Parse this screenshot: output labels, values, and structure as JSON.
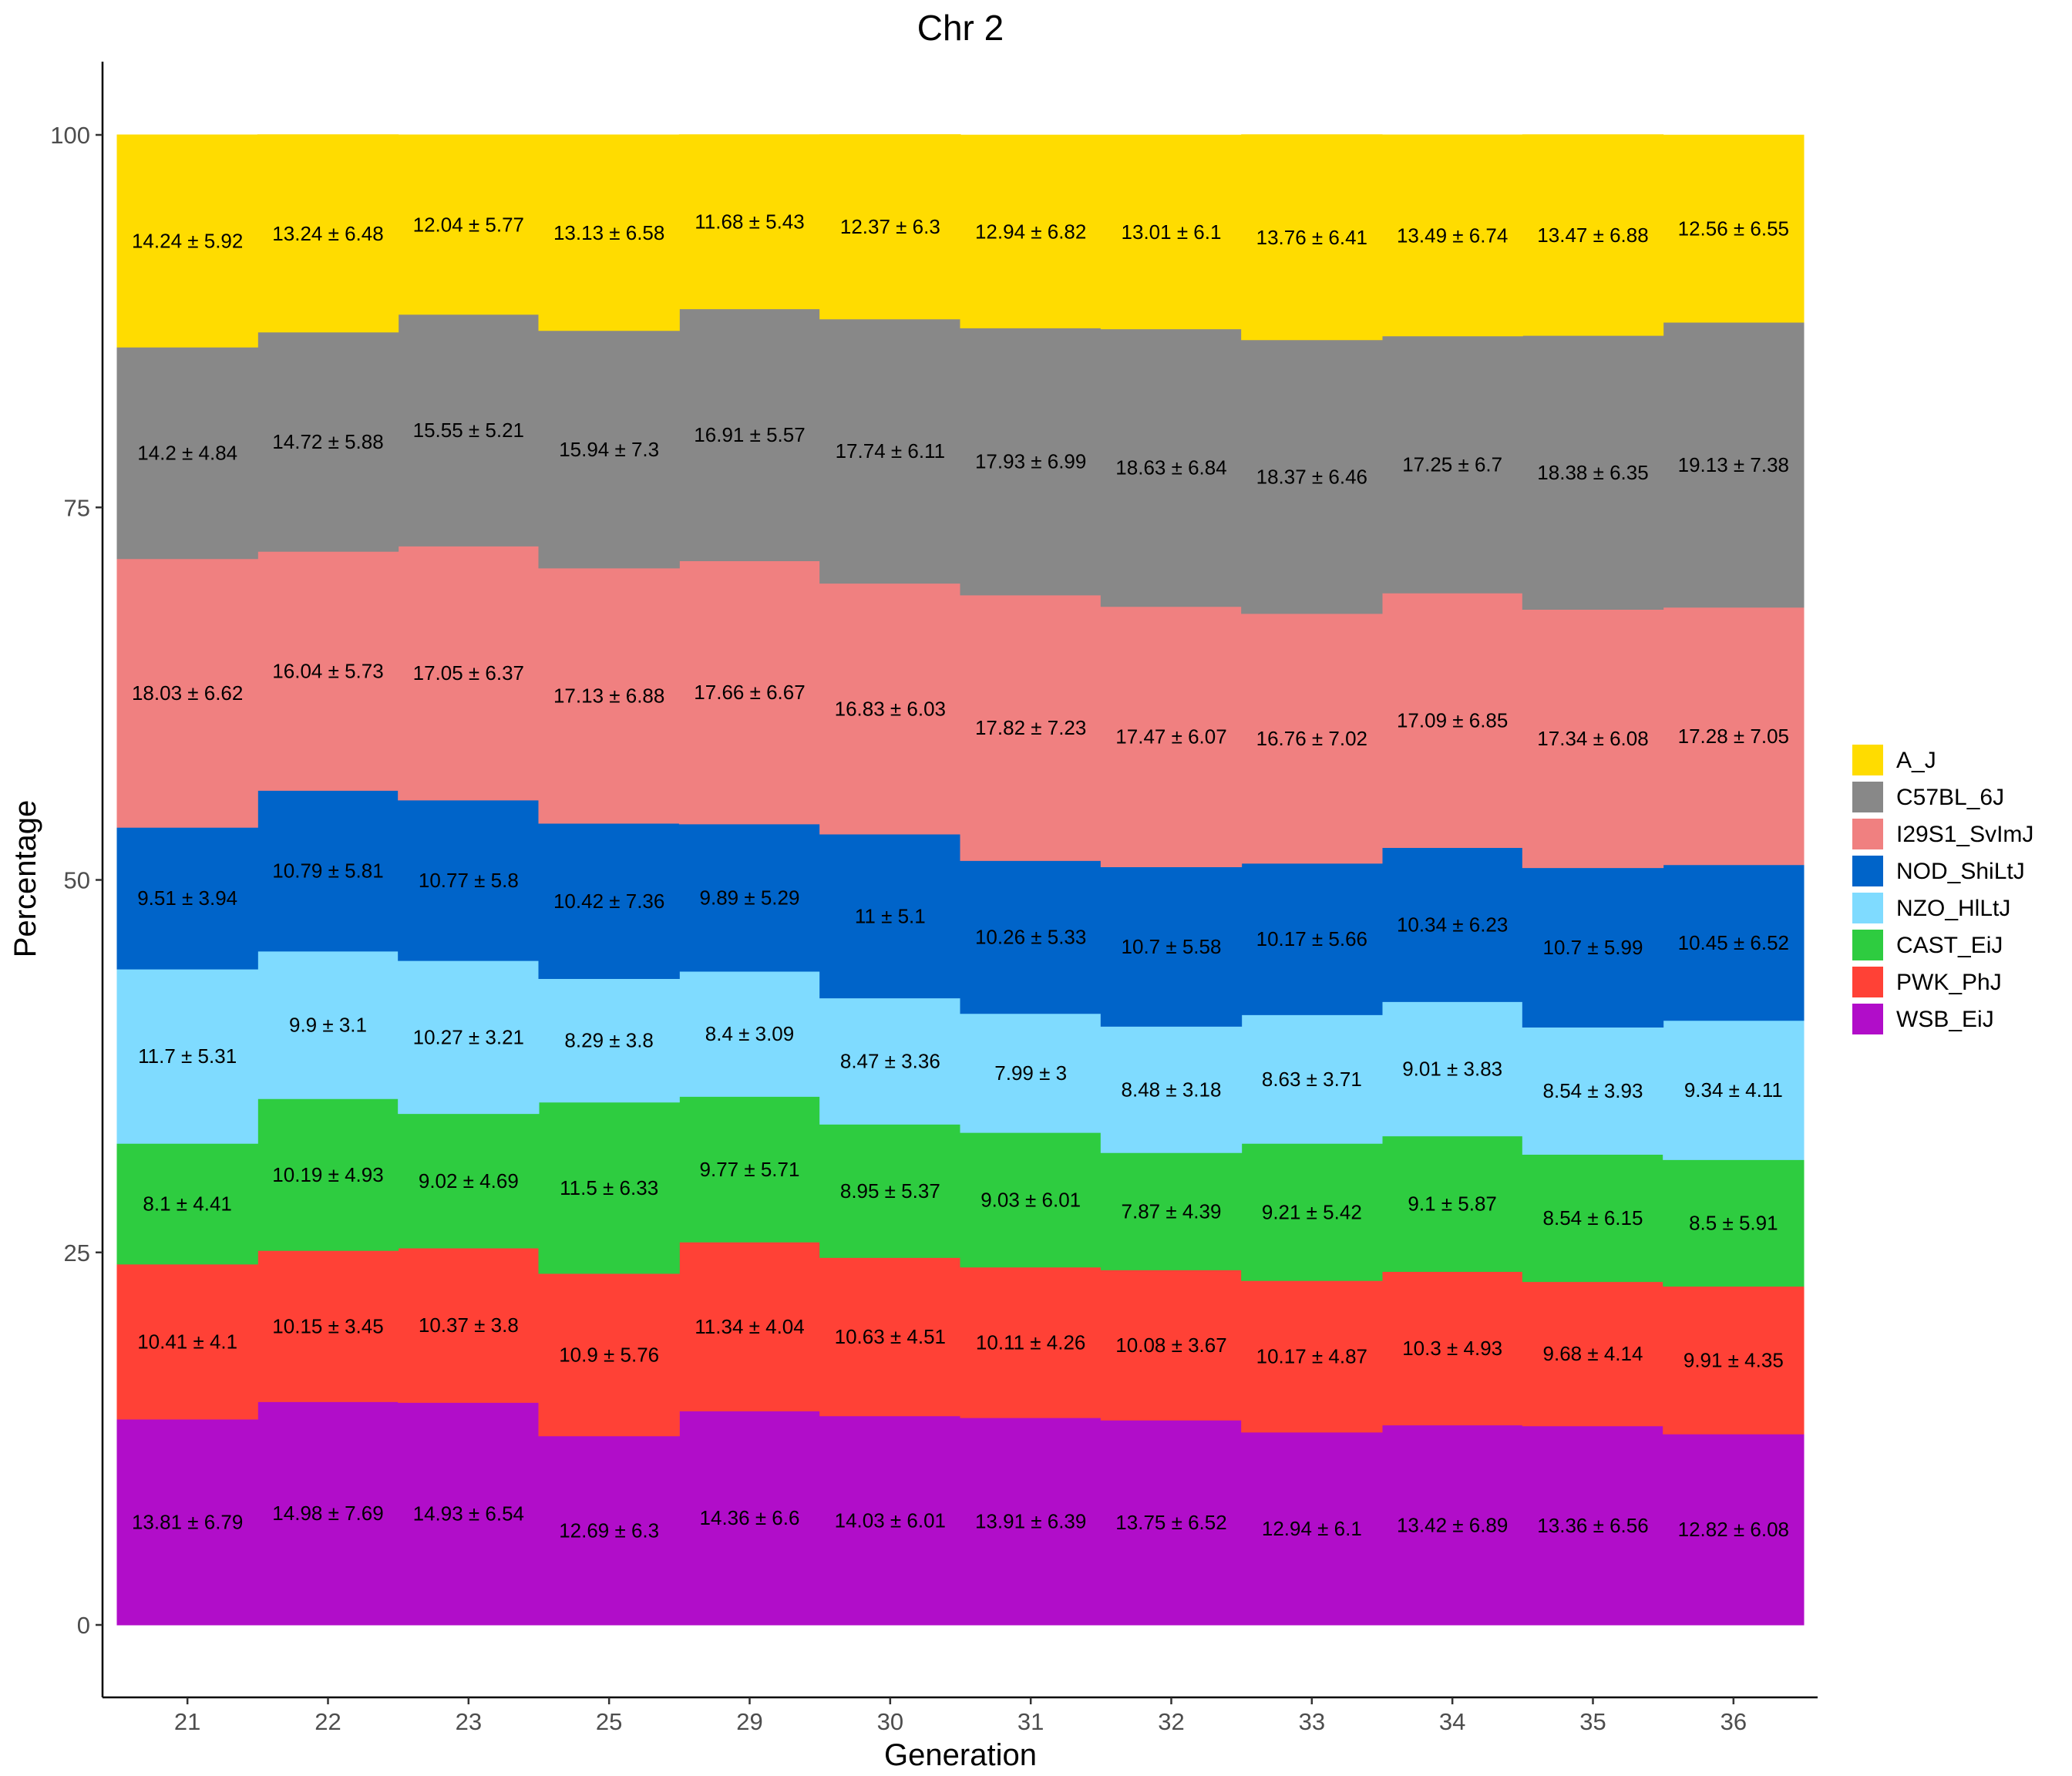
{
  "chart_data": {
    "type": "area",
    "stacked": true,
    "title": "Chr 2",
    "xlabel": "Generation",
    "ylabel": "Percentage",
    "ylim": [
      -5,
      105
    ],
    "yticks": [
      0,
      25,
      50,
      75,
      100
    ],
    "categories": [
      "21",
      "22",
      "23",
      "25",
      "29",
      "30",
      "31",
      "32",
      "33",
      "34",
      "35",
      "36"
    ],
    "grid": false,
    "legend_position": "right",
    "series": [
      {
        "name": "WSB_EiJ",
        "color": "#B10DC9",
        "values": [
          13.81,
          14.98,
          14.93,
          12.69,
          14.36,
          14.03,
          13.91,
          13.75,
          12.94,
          13.42,
          13.36,
          12.82
        ],
        "labels": [
          "13.81 ± 6.79",
          "14.98 ± 7.69",
          "14.93 ± 6.54",
          "12.69 ± 6.3",
          "14.36 ± 6.6",
          "14.03 ± 6.01",
          "13.91 ± 6.39",
          "13.75 ± 6.52",
          "12.94 ± 6.1",
          "13.42 ± 6.89",
          "13.36 ± 6.56",
          "12.82 ± 6.08"
        ]
      },
      {
        "name": "PWK_PhJ",
        "color": "#FF4136",
        "values": [
          10.41,
          10.15,
          10.37,
          10.9,
          11.34,
          10.63,
          10.11,
          10.08,
          10.17,
          10.3,
          9.68,
          9.91
        ],
        "labels": [
          "10.41 ± 4.1",
          "10.15 ± 3.45",
          "10.37 ± 3.8",
          "10.9 ± 5.76",
          "11.34 ± 4.04",
          "10.63 ± 4.51",
          "10.11 ± 4.26",
          "10.08 ± 3.67",
          "10.17 ± 4.87",
          "10.3 ± 4.93",
          "9.68 ± 4.14",
          "9.91 ± 4.35"
        ]
      },
      {
        "name": "CAST_EiJ",
        "color": "#2ECC40",
        "values": [
          8.1,
          10.19,
          9.02,
          11.5,
          9.77,
          8.95,
          9.03,
          7.87,
          9.21,
          9.1,
          8.54,
          8.5
        ],
        "labels": [
          "8.1 ± 4.41",
          "10.19 ± 4.93",
          "9.02 ± 4.69",
          "11.5 ± 6.33",
          "9.77 ± 5.71",
          "8.95 ± 5.37",
          "9.03 ± 6.01",
          "7.87 ± 4.39",
          "9.21 ± 5.42",
          "9.1 ± 5.87",
          "8.54 ± 6.15",
          "8.5 ± 5.91"
        ]
      },
      {
        "name": "NZO_HlLtJ",
        "color": "#7FDBFF",
        "values": [
          11.7,
          9.9,
          10.27,
          8.29,
          8.4,
          8.47,
          7.99,
          8.48,
          8.63,
          9.01,
          8.54,
          9.34
        ],
        "labels": [
          "11.7 ± 5.31",
          "9.9 ± 3.1",
          "10.27 ± 3.21",
          "8.29 ± 3.8",
          "8.4 ± 3.09",
          "8.47 ± 3.36",
          "7.99 ± 3",
          "8.48 ± 3.18",
          "8.63 ± 3.71",
          "9.01 ± 3.83",
          "8.54 ± 3.93",
          "9.34 ± 4.11"
        ]
      },
      {
        "name": "NOD_ShiLtJ",
        "color": "#0064C9",
        "values": [
          9.51,
          10.79,
          10.77,
          10.42,
          9.89,
          11,
          10.26,
          10.7,
          10.17,
          10.34,
          10.7,
          10.45
        ],
        "labels": [
          "9.51 ± 3.94",
          "10.79 ± 5.81",
          "10.77 ± 5.8",
          "10.42 ± 7.36",
          "9.89 ± 5.29",
          "11 ± 5.1",
          "10.26 ± 5.33",
          "10.7 ± 5.58",
          "10.17 ± 5.66",
          "10.34 ± 6.23",
          "10.7 ± 5.99",
          "10.45 ± 6.52"
        ]
      },
      {
        "name": "I29S1_SvImJ",
        "color": "#F08080",
        "values": [
          18.03,
          16.04,
          17.05,
          17.13,
          17.66,
          16.83,
          17.82,
          17.47,
          16.76,
          17.09,
          17.34,
          17.28
        ],
        "labels": [
          "18.03 ± 6.62",
          "16.04 ± 5.73",
          "17.05 ± 6.37",
          "17.13 ± 6.88",
          "17.66 ± 6.67",
          "16.83 ± 6.03",
          "17.82 ± 7.23",
          "17.47 ± 6.07",
          "16.76 ± 7.02",
          "17.09 ± 6.85",
          "17.34 ± 6.08",
          "17.28 ± 7.05"
        ]
      },
      {
        "name": "C57BL_6J",
        "color": "#888888",
        "values": [
          14.2,
          14.72,
          15.55,
          15.94,
          16.91,
          17.74,
          17.93,
          18.63,
          18.37,
          17.25,
          18.38,
          19.13
        ],
        "labels": [
          "14.2 ± 4.84",
          "14.72 ± 5.88",
          "15.55 ± 5.21",
          "15.94 ± 7.3",
          "16.91 ± 5.57",
          "17.74 ± 6.11",
          "17.93 ± 6.99",
          "18.63 ± 6.84",
          "18.37 ± 6.46",
          "17.25 ± 6.7",
          "18.38 ± 6.35",
          "19.13 ± 7.38"
        ]
      },
      {
        "name": "A_J",
        "color": "#FFDC00",
        "values": [
          14.24,
          13.24,
          12.04,
          13.13,
          11.68,
          12.37,
          12.94,
          13.01,
          13.76,
          13.49,
          13.47,
          12.56
        ],
        "labels": [
          "14.24 ± 5.92",
          "13.24 ± 6.48",
          "12.04 ± 5.77",
          "13.13 ± 6.58",
          "11.68 ± 5.43",
          "12.37 ± 6.3",
          "12.94 ± 6.82",
          "13.01 ± 6.1",
          "13.76 ± 6.41",
          "13.49 ± 6.74",
          "13.47 ± 6.88",
          "12.56 ± 6.55"
        ]
      }
    ],
    "legend_entries": [
      "A_J",
      "C57BL_6J",
      "I29S1_SvImJ",
      "NOD_ShiLtJ",
      "NZO_HlLtJ",
      "CAST_EiJ",
      "PWK_PhJ",
      "WSB_EiJ"
    ]
  }
}
